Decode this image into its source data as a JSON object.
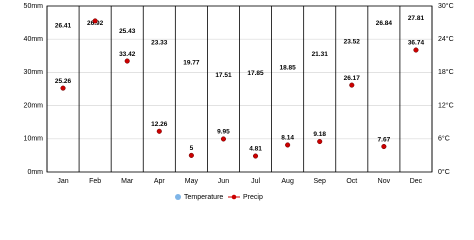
{
  "chart_data": {
    "type": "climate",
    "categories": [
      "Jan",
      "Feb",
      "Mar",
      "Apr",
      "May",
      "Jun",
      "Jul",
      "Aug",
      "Sep",
      "Oct",
      "Nov",
      "Dec"
    ],
    "series": [
      {
        "name": "Temperature",
        "color": "#7fb5e8",
        "axis": "y2",
        "values": [
          26.41,
          26.92,
          25.43,
          23.33,
          19.77,
          17.51,
          17.85,
          18.85,
          21.31,
          23.52,
          26.84,
          27.81
        ]
      },
      {
        "name": "Precip",
        "color": "#cc0000",
        "values": [
          25.26,
          45.5,
          33.42,
          12.26,
          5,
          9.95,
          4.81,
          8.14,
          9.18,
          26.17,
          7.67,
          36.74
        ],
        "value_labels": [
          "25.26",
          null,
          "33.42",
          "12.26",
          "5",
          "9.95",
          "4.81",
          "8.14",
          "9.18",
          "26.17",
          "7.67",
          "36.74"
        ]
      }
    ],
    "ylim": [
      0,
      50
    ],
    "yticks": [
      {
        "value": 0,
        "label": "0mm"
      },
      {
        "value": 10,
        "label": "10mm"
      },
      {
        "value": 20,
        "label": "20mm"
      },
      {
        "value": 30,
        "label": "30mm"
      },
      {
        "value": 40,
        "label": "40mm"
      },
      {
        "value": 50,
        "label": "50mm"
      }
    ],
    "y2lim": [
      0,
      30
    ],
    "y2ticks": [
      {
        "value": 0,
        "label": "0°C"
      },
      {
        "value": 6,
        "label": "6°C"
      },
      {
        "value": 12,
        "label": "12°C"
      },
      {
        "value": 18,
        "label": "18°C"
      },
      {
        "value": 24,
        "label": "24°C"
      },
      {
        "value": 30,
        "label": "30°C"
      }
    ],
    "grid": true
  }
}
